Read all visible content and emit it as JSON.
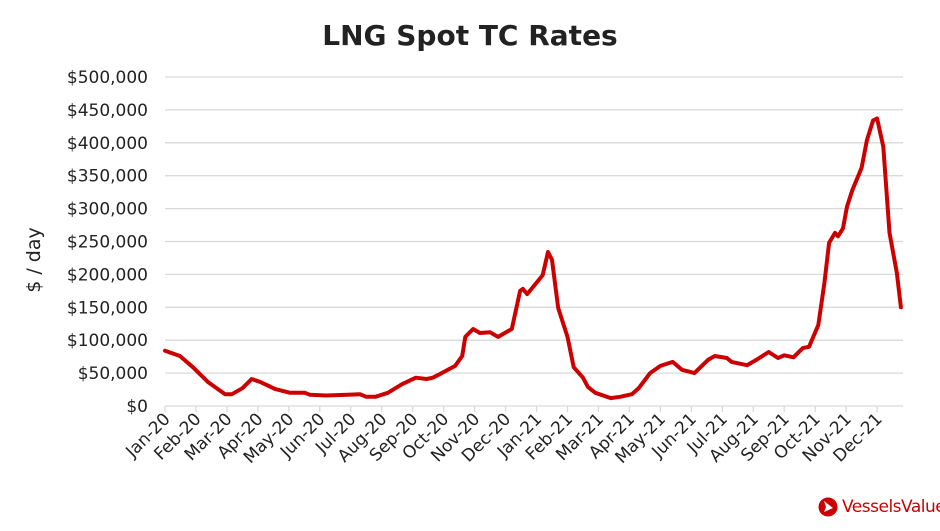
{
  "chart_data": {
    "type": "line",
    "title": "LNG Spot TC Rates",
    "xlabel": "",
    "ylabel": "$ / day",
    "ylim": [
      0,
      500000
    ],
    "yticks": [
      0,
      50000,
      100000,
      150000,
      200000,
      250000,
      300000,
      350000,
      400000,
      450000,
      500000
    ],
    "ytick_labels": [
      "$0",
      "$50,000",
      "$100,000",
      "$150,000",
      "$200,000",
      "$250,000",
      "$300,000",
      "$350,000",
      "$400,000",
      "$450,000",
      "$500,000"
    ],
    "xlim_months": [
      0,
      23.84
    ],
    "xtick_labels": [
      "Jan-20",
      "Feb-20",
      "Mar-20",
      "Apr-20",
      "May-20",
      "Jun-20",
      "Jul-20",
      "Aug-20",
      "Sep-20",
      "Oct-20",
      "Nov-20",
      "Dec-20",
      "Jan-21",
      "Feb-21",
      "Mar-21",
      "Apr-21",
      "May-21",
      "Jun-21",
      "Jul-21",
      "Aug-21",
      "Sep-21",
      "Oct-21",
      "Nov-21",
      "Dec-21"
    ],
    "grid": true,
    "line_color": "#cc0000",
    "series": [
      {
        "name": "LNG Spot TC Rate",
        "x_months": [
          0,
          0.48,
          0.9,
          1.4,
          1.94,
          2.16,
          2.5,
          2.8,
          3.1,
          3.55,
          4.04,
          4.52,
          4.68,
          5.2,
          5.9,
          6.3,
          6.5,
          6.8,
          7.2,
          7.65,
          8.1,
          8.45,
          8.65,
          8.9,
          9.37,
          9.6,
          9.7,
          9.95,
          10.17,
          10.5,
          10.76,
          11.2,
          11.47,
          11.56,
          11.7,
          12.2,
          12.37,
          12.5,
          12.7,
          13.0,
          13.2,
          13.5,
          13.66,
          13.9,
          14.4,
          14.7,
          15.08,
          15.3,
          15.67,
          16.0,
          16.4,
          16.7,
          17.1,
          17.54,
          17.76,
          18.15,
          18.3,
          18.8,
          19.1,
          19.5,
          19.8,
          20.0,
          20.3,
          20.6,
          20.8,
          21.1,
          21.3,
          21.45,
          21.64,
          21.74,
          21.9,
          22.03,
          22.2,
          22.5,
          22.67,
          22.87,
          23.0,
          23.2,
          23.4,
          23.64,
          23.77
        ],
        "values": [
          84000,
          76000,
          59000,
          36000,
          18000,
          18000,
          27000,
          41000,
          36000,
          26000,
          20000,
          20000,
          17000,
          16000,
          17000,
          18000,
          14000,
          14000,
          20000,
          33000,
          43000,
          41000,
          43000,
          49000,
          61000,
          76000,
          105000,
          117000,
          111000,
          112000,
          105000,
          117000,
          175000,
          178000,
          170000,
          199000,
          234000,
          222000,
          149000,
          105000,
          59000,
          43000,
          29000,
          20000,
          12000,
          14000,
          18000,
          27000,
          50000,
          61000,
          67000,
          55000,
          50000,
          70000,
          76000,
          73000,
          67000,
          62000,
          70000,
          82000,
          73000,
          77000,
          74000,
          88000,
          90000,
          123000,
          187000,
          248000,
          263000,
          258000,
          270000,
          303000,
          328000,
          362000,
          404000,
          434000,
          437000,
          394000,
          263000,
          202000,
          150000
        ]
      }
    ]
  },
  "branding": {
    "logo_text": "VesselsValue",
    "brand_color": "#cc0000"
  }
}
